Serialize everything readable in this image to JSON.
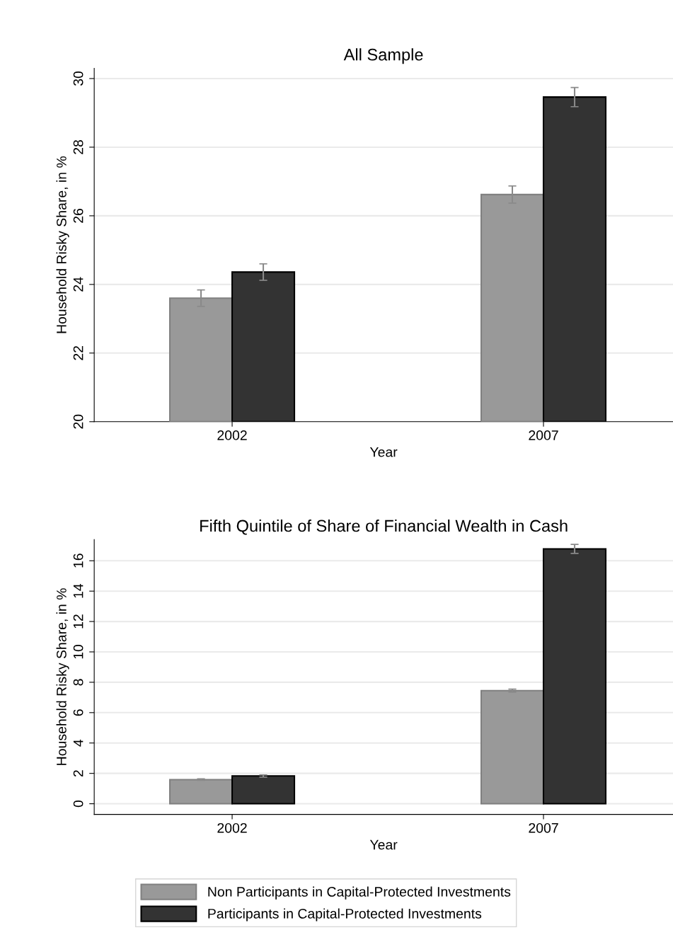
{
  "chart_data": [
    {
      "type": "bar",
      "title": "All Sample",
      "xlabel": "Year",
      "ylabel": "Household Risky Share, in %",
      "categories": [
        "2002",
        "2007"
      ],
      "series": [
        {
          "color": "#999999",
          "values": [
            23.6,
            26.62
          ],
          "errors": [
            0.24,
            0.25
          ]
        },
        {
          "color": "#333333",
          "values": [
            24.36,
            29.46
          ],
          "errors": [
            0.24,
            0.28
          ]
        }
      ],
      "ylim": [
        20,
        30.3
      ],
      "yticks": [
        20,
        22,
        24,
        26,
        28,
        30
      ],
      "grid": "y",
      "legend": false
    },
    {
      "type": "bar",
      "title": "Fifth Quintile of Share of Financial Wealth in Cash",
      "xlabel": "Year",
      "ylabel": "Household Risky Share, in %",
      "categories": [
        "2002",
        "2007"
      ],
      "series": [
        {
          "name": "Non Participants in Capital-Protected Investments",
          "color": "#999999",
          "values": [
            1.59,
            7.45
          ],
          "errors": [
            0.05,
            0.1
          ]
        },
        {
          "name": "Participants in Capital-Protected Investments",
          "color": "#333333",
          "values": [
            1.83,
            16.78
          ],
          "errors": [
            0.07,
            0.3
          ]
        }
      ],
      "ylim": [
        -0.7,
        17.4
      ],
      "yticks": [
        0,
        2,
        4,
        6,
        8,
        10,
        12,
        14,
        16
      ],
      "grid": "y",
      "legend": "bottom"
    }
  ]
}
